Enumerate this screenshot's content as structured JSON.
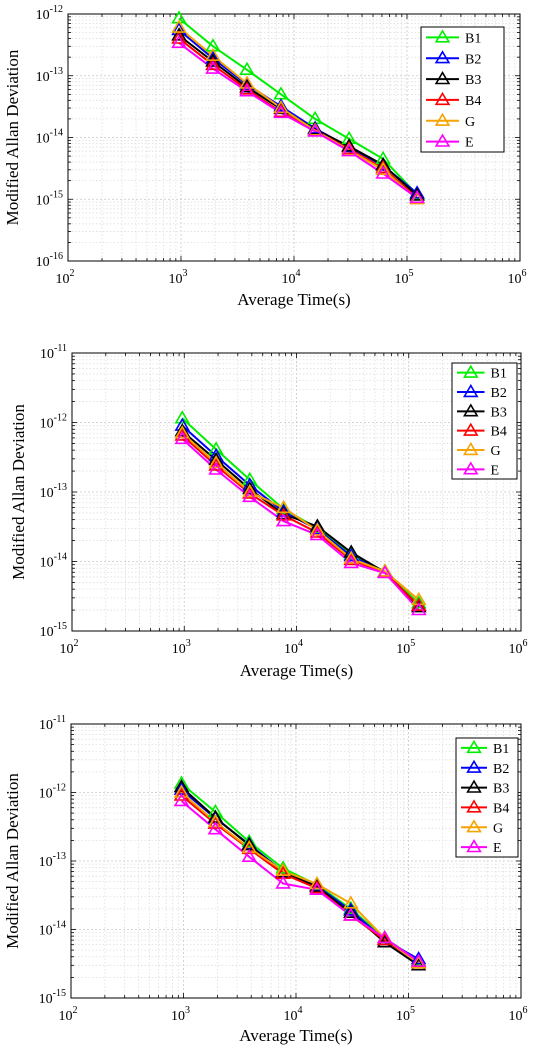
{
  "chart_data": [
    {
      "type": "line",
      "title": "",
      "xlabel": "Average Time(s)",
      "ylabel": "Modified Allan Deviation",
      "xscale": "log",
      "yscale": "log",
      "xlim": [
        100,
        1000000
      ],
      "ylim": [
        1e-16,
        1e-12
      ],
      "xticks": [
        {
          "base": "10",
          "exp": "2"
        },
        {
          "base": "10",
          "exp": "3"
        },
        {
          "base": "10",
          "exp": "4"
        },
        {
          "base": "10",
          "exp": "5"
        },
        {
          "base": "10",
          "exp": "6"
        }
      ],
      "yticks": [
        {
          "base": "10",
          "exp": "-16"
        },
        {
          "base": "10",
          "exp": "-15"
        },
        {
          "base": "10",
          "exp": "-14"
        },
        {
          "base": "10",
          "exp": "-13"
        },
        {
          "base": "10",
          "exp": "-12"
        }
      ],
      "grid": true,
      "legend_position": "top-right",
      "x": [
        960,
        1920,
        3840,
        7680,
        15360,
        30720,
        61440,
        122880
      ],
      "series": [
        {
          "name": "B1",
          "color": "#00ee00",
          "marker": "triangle",
          "values": [
            8.5e-13,
            3e-13,
            1.25e-13,
            5e-14,
            2e-14,
            9.5e-15,
            4.5e-15,
            1.2e-15
          ]
        },
        {
          "name": "B2",
          "color": "#0000ff",
          "marker": "triangle",
          "values": [
            5.5e-13,
            1.9e-13,
            7.2e-14,
            3.2e-14,
            1.4e-14,
            7e-15,
            3.5e-15,
            1.25e-15
          ]
        },
        {
          "name": "B3",
          "color": "#000000",
          "marker": "triangle",
          "values": [
            4.5e-13,
            1.7e-13,
            6.5e-14,
            2.9e-14,
            1.35e-14,
            7.2e-15,
            3.6e-15,
            1.15e-15
          ]
        },
        {
          "name": "B4",
          "color": "#ff0000",
          "marker": "triangle",
          "values": [
            4e-13,
            1.5e-13,
            6e-14,
            2.6e-14,
            1.3e-14,
            6.5e-15,
            3.2e-15,
            1.05e-15
          ]
        },
        {
          "name": "G",
          "color": "#f5a300",
          "marker": "triangle",
          "values": [
            6e-13,
            2.1e-13,
            7.5e-14,
            3e-14,
            1.3e-14,
            6.2e-15,
            3e-15,
            1e-15
          ]
        },
        {
          "name": "E",
          "color": "#ff00ff",
          "marker": "triangle",
          "values": [
            3.4e-13,
            1.3e-13,
            5.6e-14,
            2.5e-14,
            1.25e-14,
            6e-15,
            2.6e-15,
            1.05e-15
          ]
        }
      ]
    },
    {
      "type": "line",
      "title": "",
      "xlabel": "Average Time(s)",
      "ylabel": "Modified Allan Deviation",
      "xscale": "log",
      "yscale": "log",
      "xlim": [
        100,
        1000000
      ],
      "ylim": [
        1e-15,
        1e-11
      ],
      "xticks": [
        {
          "base": "10",
          "exp": "2"
        },
        {
          "base": "10",
          "exp": "3"
        },
        {
          "base": "10",
          "exp": "4"
        },
        {
          "base": "10",
          "exp": "5"
        },
        {
          "base": "10",
          "exp": "6"
        }
      ],
      "yticks": [
        {
          "base": "10",
          "exp": "-15"
        },
        {
          "base": "10",
          "exp": "-14"
        },
        {
          "base": "10",
          "exp": "-13"
        },
        {
          "base": "10",
          "exp": "-12"
        },
        {
          "base": "10",
          "exp": "-11"
        }
      ],
      "grid": true,
      "legend_position": "top-right",
      "x": [
        960,
        1920,
        3840,
        7680,
        15360,
        30720,
        61440,
        122880
      ],
      "series": [
        {
          "name": "B1",
          "color": "#00ee00",
          "marker": "triangle",
          "values": [
            1.15e-12,
            4.1e-13,
            1.5e-13,
            5.7e-14,
            3e-14,
            1.25e-14,
            7.2e-15,
            2.5e-15
          ]
        },
        {
          "name": "B2",
          "color": "#0000ff",
          "marker": "triangle",
          "values": [
            9e-13,
            3.3e-13,
            1.25e-13,
            5.2e-14,
            2.9e-14,
            1.2e-14,
            7e-15,
            2.3e-15
          ]
        },
        {
          "name": "B3",
          "color": "#000000",
          "marker": "triangle",
          "values": [
            7.5e-13,
            2.9e-13,
            1.1e-13,
            4.8e-14,
            3.2e-14,
            1.35e-14,
            7e-15,
            2.2e-15
          ]
        },
        {
          "name": "B4",
          "color": "#ff0000",
          "marker": "triangle",
          "values": [
            6.5e-13,
            2.4e-13,
            9.5e-14,
            4.6e-14,
            2.6e-14,
            1.05e-14,
            7e-15,
            2.3e-15
          ]
        },
        {
          "name": "G",
          "color": "#f5a300",
          "marker": "triangle",
          "values": [
            7e-13,
            2.6e-13,
            1e-13,
            5.9e-14,
            2.8e-14,
            1.1e-14,
            7.2e-15,
            2.8e-15
          ]
        },
        {
          "name": "E",
          "color": "#ff00ff",
          "marker": "triangle",
          "values": [
            5.8e-13,
            2.1e-13,
            8.5e-14,
            3.8e-14,
            2.4e-14,
            9.5e-15,
            6.8e-15,
            2e-15
          ]
        }
      ]
    },
    {
      "type": "line",
      "title": "",
      "xlabel": "Average Time(s)",
      "ylabel": "Modified Allan Deviation",
      "xscale": "log",
      "yscale": "log",
      "xlim": [
        100,
        1000000
      ],
      "ylim": [
        1e-15,
        1e-11
      ],
      "xticks": [
        {
          "base": "10",
          "exp": "2"
        },
        {
          "base": "10",
          "exp": "3"
        },
        {
          "base": "10",
          "exp": "4"
        },
        {
          "base": "10",
          "exp": "5"
        },
        {
          "base": "10",
          "exp": "6"
        }
      ],
      "yticks": [
        {
          "base": "10",
          "exp": "-15"
        },
        {
          "base": "10",
          "exp": "-14"
        },
        {
          "base": "10",
          "exp": "-13"
        },
        {
          "base": "10",
          "exp": "-12"
        },
        {
          "base": "10",
          "exp": "-11"
        }
      ],
      "grid": true,
      "legend_position": "top-right",
      "x": [
        960,
        1920,
        3840,
        7680,
        15360,
        30720,
        61440,
        122880
      ],
      "series": [
        {
          "name": "B1",
          "color": "#00ee00",
          "marker": "triangle",
          "values": [
            1.35e-12,
            5.2e-13,
            1.9e-13,
            7.8e-14,
            4.5e-14,
            2e-14,
            7.5e-15,
            3.5e-15
          ]
        },
        {
          "name": "B2",
          "color": "#0000ff",
          "marker": "triangle",
          "values": [
            1.1e-12,
            4.2e-13,
            1.75e-13,
            7e-14,
            4.3e-14,
            1.9e-14,
            7e-15,
            3.7e-15
          ]
        },
        {
          "name": "B3",
          "color": "#000000",
          "marker": "triangle",
          "values": [
            1.2e-12,
            4.3e-13,
            1.7e-13,
            6.8e-14,
            4.2e-14,
            1.75e-14,
            6.5e-15,
            3e-15
          ]
        },
        {
          "name": "B4",
          "color": "#ff0000",
          "marker": "triangle",
          "values": [
            9e-13,
            3.5e-13,
            1.5e-13,
            6.5e-14,
            4e-14,
            1.6e-14,
            7e-15,
            3.3e-15
          ]
        },
        {
          "name": "G",
          "color": "#f5a300",
          "marker": "triangle",
          "values": [
            1e-12,
            3.7e-13,
            1.55e-13,
            7.2e-14,
            4.6e-14,
            2.4e-14,
            7.5e-15,
            3.2e-15
          ]
        },
        {
          "name": "E",
          "color": "#ff00ff",
          "marker": "triangle",
          "values": [
            7.5e-13,
            2.9e-13,
            1.15e-13,
            4.7e-14,
            3.8e-14,
            1.6e-14,
            7.5e-15,
            3.4e-15
          ]
        }
      ]
    }
  ]
}
